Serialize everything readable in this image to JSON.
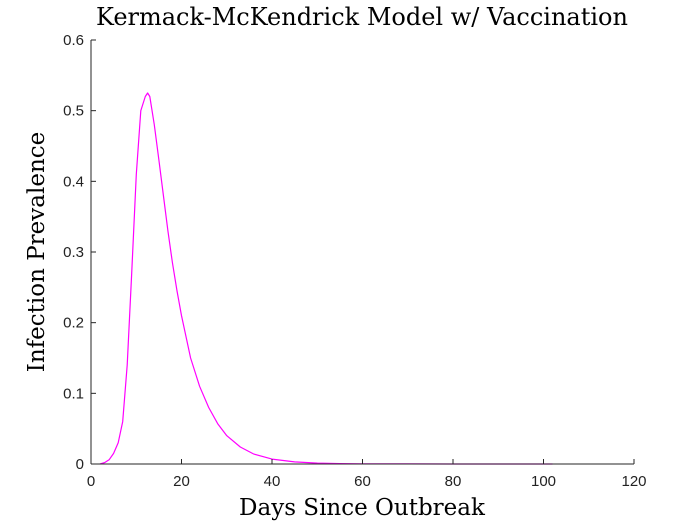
{
  "chart_data": {
    "type": "line",
    "title": "Kermack-McKendrick Model w/ Vaccination",
    "xlabel": "Days Since Outbreak",
    "ylabel": "Infection Prevalence",
    "xlim": [
      0,
      120
    ],
    "ylim": [
      0,
      0.6
    ],
    "xticks": [
      0,
      20,
      40,
      60,
      80,
      100,
      120
    ],
    "yticks": [
      0,
      0.1,
      0.2,
      0.3,
      0.4,
      0.5,
      0.6
    ],
    "xtick_labels": [
      "0",
      "20",
      "40",
      "60",
      "80",
      "100",
      "120"
    ],
    "ytick_labels": [
      "0",
      "0.1",
      "0.2",
      "0.3",
      "0.4",
      "0.5",
      "0.6"
    ],
    "grid": false,
    "series": [
      {
        "color": "#ff00ff",
        "x": [
          2,
          3,
          4,
          5,
          6,
          7,
          8,
          9,
          10,
          11,
          12,
          12.5,
          13,
          14,
          15,
          16,
          17,
          18,
          19,
          20,
          22,
          24,
          26,
          28,
          30,
          33,
          36,
          40,
          45,
          50,
          55,
          60,
          70,
          80,
          90,
          102
        ],
        "y": [
          0.0,
          0.002,
          0.006,
          0.015,
          0.03,
          0.06,
          0.14,
          0.27,
          0.41,
          0.5,
          0.52,
          0.525,
          0.52,
          0.48,
          0.43,
          0.38,
          0.33,
          0.285,
          0.245,
          0.21,
          0.15,
          0.11,
          0.08,
          0.057,
          0.04,
          0.024,
          0.014,
          0.007,
          0.003,
          0.0013,
          0.0006,
          0.0003,
          0.0001,
          5e-05,
          2e-05,
          1e-05
        ]
      }
    ]
  }
}
